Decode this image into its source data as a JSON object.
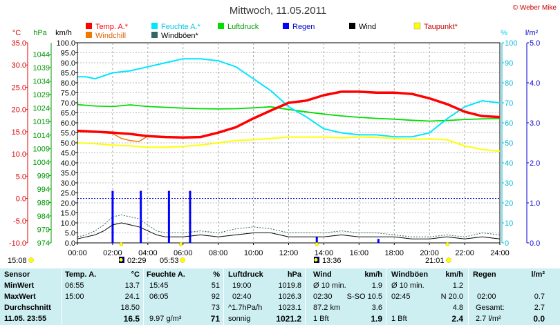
{
  "header": {
    "title": "Mittwoch, 11.05.2011",
    "copyright": "© Weber Mike"
  },
  "colors": {
    "temp": "#ff0000",
    "windchill": "#f07800",
    "feuchte": "#00e6ff",
    "luftdruck": "#00dd00",
    "regen": "#0000ff",
    "wind": "#000000",
    "taupunkt": "#ffff00",
    "windboeen": "#336666",
    "panel_bg": "#cdeff2"
  },
  "chart_data": {
    "type": "line",
    "title": "Mittwoch, 11.05.2011",
    "x_unit": "hours",
    "xlim": [
      0,
      24
    ],
    "x_ticks": [
      "00:00",
      "02:00",
      "04:00",
      "06:00",
      "08:00",
      "10:00",
      "12:00",
      "14:00",
      "16:00",
      "18:00",
      "20:00",
      "22:00",
      "24:00"
    ],
    "axes": {
      "temp_c": {
        "label": "°C",
        "range": [
          -10,
          35
        ],
        "ticks": [
          "35.0",
          "30.0",
          "25.0",
          "20.0",
          "15.0",
          "10.0",
          "5.0",
          "0.0",
          "-5.0",
          "-10.0"
        ]
      },
      "pressure_hpa": {
        "label": "hPa",
        "range": [
          974,
          1048.25
        ],
        "ticks": [
          "1044",
          "1039",
          "1034",
          "1029",
          "1024",
          "1019",
          "1014",
          "1009",
          "1004",
          "999",
          "994",
          "989",
          "984",
          "979",
          "974"
        ]
      },
      "wind_kmh": {
        "label": "km/h",
        "range": [
          0,
          100
        ],
        "ticks": [
          "100.0",
          "95.0",
          "90.0",
          "85.0",
          "80.0",
          "75.0",
          "70.0",
          "65.0",
          "60.0",
          "55.0",
          "50.0",
          "45.0",
          "40.0",
          "35.0",
          "30.0",
          "25.0",
          "20.0",
          "15.0",
          "10.0",
          "5.0",
          "0.0"
        ]
      },
      "humidity_pct": {
        "label": "%",
        "range": [
          0,
          100
        ],
        "ticks": [
          "100",
          "90",
          "80",
          "70",
          "60",
          "50",
          "40",
          "30",
          "20",
          "10",
          "0"
        ]
      },
      "rain_lm2": {
        "label": "l/m²",
        "range": [
          0,
          5
        ],
        "ticks": [
          "5.0",
          "4.0",
          "3.0",
          "2.0",
          "1.0",
          "0.0"
        ]
      }
    },
    "legend": [
      {
        "name": "Temp. A.*",
        "color": "#ff0000"
      },
      {
        "name": "Feuchte A.*",
        "color": "#00e6ff"
      },
      {
        "name": "Luftdruck",
        "color": "#00dd00"
      },
      {
        "name": "Regen",
        "color": "#0000ff"
      },
      {
        "name": "Wind",
        "color": "#000000"
      },
      {
        "name": "Taupunkt*",
        "color": "#ffff00"
      },
      {
        "name": "Windchill",
        "color": "#f07800"
      },
      {
        "name": "Windböen*",
        "color": "#336666"
      }
    ],
    "reference_line_c": 0,
    "series": [
      {
        "name": "Temp. A.*",
        "axis": "temp_c",
        "x": [
          0,
          1,
          2,
          3,
          4,
          5,
          6,
          7,
          8,
          9,
          10,
          11,
          12,
          13,
          14,
          15,
          16,
          17,
          18,
          19,
          20,
          21,
          22,
          23,
          24
        ],
        "values": [
          15.2,
          15.0,
          14.8,
          14.5,
          14.0,
          13.8,
          13.7,
          13.8,
          14.8,
          16.0,
          18.0,
          19.8,
          21.5,
          22.0,
          23.2,
          24.0,
          24.0,
          23.8,
          23.8,
          23.5,
          22.5,
          21.2,
          19.5,
          18.5,
          18.3
        ]
      },
      {
        "name": "Windchill",
        "axis": "temp_c",
        "x": [
          0,
          1,
          2,
          2.5,
          3,
          3.5,
          4,
          5,
          6,
          7,
          8,
          9,
          10,
          11,
          12,
          13,
          14,
          15,
          16,
          17,
          18,
          19,
          20,
          21,
          22,
          23,
          24
        ],
        "values": [
          15.0,
          14.9,
          14.6,
          13.5,
          13.0,
          12.8,
          14.0,
          13.8,
          13.6,
          13.7,
          14.7,
          16.0,
          18.2,
          19.8,
          21.4,
          22.0,
          23.2,
          24.0,
          24.0,
          23.8,
          23.7,
          23.5,
          22.4,
          21.2,
          19.5,
          18.5,
          18.3
        ]
      },
      {
        "name": "Feuchte A.*",
        "axis": "humidity_pct",
        "x": [
          0,
          0.5,
          1,
          2,
          3,
          4,
          5,
          6,
          7,
          8,
          9,
          10,
          11,
          12,
          13,
          14,
          15,
          16,
          17,
          18,
          19,
          20,
          21,
          22,
          23,
          24
        ],
        "values": [
          83,
          83,
          82,
          85,
          86,
          88,
          90,
          92,
          92,
          91,
          88,
          82,
          76,
          68,
          63,
          57,
          55,
          54,
          54,
          53,
          53,
          55,
          62,
          68,
          71,
          70
        ]
      },
      {
        "name": "Luftdruck",
        "axis": "pressure_hpa",
        "x": [
          0,
          1,
          2,
          3,
          4,
          5,
          6,
          7,
          8,
          9,
          10,
          11,
          12,
          13,
          14,
          15,
          16,
          17,
          18,
          19,
          20,
          21,
          22,
          23,
          24
        ],
        "values": [
          1025.3,
          1024.8,
          1024.6,
          1025.2,
          1024.6,
          1024.3,
          1024.0,
          1023.8,
          1023.7,
          1023.8,
          1024.1,
          1024.5,
          1023.5,
          1022.6,
          1021.8,
          1021.1,
          1020.6,
          1020.2,
          1019.9,
          1019.5,
          1019.2,
          1019.4,
          1019.8,
          1020.0,
          1020.1
        ]
      },
      {
        "name": "Taupunkt*",
        "axis": "temp_c",
        "x": [
          0,
          1,
          2,
          3,
          4,
          5,
          6,
          7,
          8,
          9,
          10,
          11,
          12,
          13,
          14,
          15,
          16,
          17,
          18,
          19,
          20,
          21,
          22,
          23,
          24
        ],
        "values": [
          12.5,
          12.3,
          12.0,
          11.8,
          11.5,
          11.5,
          11.7,
          12.0,
          12.5,
          13.0,
          13.2,
          13.5,
          13.8,
          13.8,
          13.8,
          13.6,
          13.8,
          13.7,
          13.5,
          13.3,
          13.4,
          13.2,
          11.8,
          11.0,
          10.6
        ]
      },
      {
        "name": "Wind",
        "axis": "wind_kmh",
        "x": [
          0,
          0.5,
          1,
          1.5,
          2,
          2.5,
          3,
          3.5,
          4,
          4.5,
          5,
          6,
          7,
          8,
          9,
          10,
          11,
          12,
          13,
          14,
          15,
          16,
          17,
          18,
          19,
          20,
          21,
          22,
          23,
          24
        ],
        "values": [
          2,
          3,
          4,
          6,
          9,
          10,
          9,
          8,
          6,
          4,
          3,
          3,
          4,
          3,
          4,
          5,
          5,
          3,
          3,
          3,
          4,
          3,
          3,
          3,
          2,
          2,
          3,
          2,
          3,
          2
        ]
      },
      {
        "name": "Windböen*",
        "axis": "wind_kmh",
        "x": [
          0,
          0.5,
          1,
          1.5,
          2,
          2.5,
          3,
          3.5,
          4,
          4.5,
          5,
          6,
          7,
          8,
          9,
          10,
          11,
          12,
          13,
          14,
          15,
          16,
          17,
          18,
          19,
          20,
          21,
          22,
          23,
          24
        ],
        "values": [
          3,
          4,
          6,
          9,
          13,
          14,
          13,
          12,
          9,
          6,
          5,
          5,
          6,
          5,
          7,
          8,
          7,
          5,
          5,
          5,
          6,
          5,
          5,
          4,
          3,
          3,
          4,
          3,
          5,
          4
        ]
      }
    ],
    "rain_bars": [
      {
        "x": 2.0,
        "value": 1.3
      },
      {
        "x": 3.6,
        "value": 1.3
      },
      {
        "x": 5.2,
        "value": 1.3
      },
      {
        "x": 6.4,
        "value": 1.3
      },
      {
        "x": 13.6,
        "value": 0.15
      },
      {
        "x": 17.1,
        "value": 0.1
      }
    ],
    "time_markers": [
      {
        "label": "15:08",
        "kind": "sunrise"
      },
      {
        "label": "02:29",
        "kind": "moon"
      },
      {
        "label": "05:53",
        "kind": "sun"
      },
      {
        "label": "13:36",
        "kind": "moon"
      },
      {
        "label": "21:01",
        "kind": "sun"
      }
    ]
  },
  "table": {
    "sensor": {
      "title": "Sensor",
      "labels": [
        "MinWert",
        "MaxWert",
        "Durchschnitt"
      ],
      "date": "11.05. 23:55"
    },
    "temp": {
      "title": "Temp. A.",
      "unit": "°C",
      "min_time": "06:55",
      "min_val": "13.7",
      "max_time": "15:00",
      "max_val": "24.1",
      "avg": "18.50",
      "current": "16.5"
    },
    "feuchte": {
      "title": "Feuchte A.",
      "unit": "%",
      "min_time": "15:45",
      "min_val": "51",
      "max_time": "06:05",
      "max_val": "92",
      "avg": "73",
      "extra": "9.97 g/m³",
      "current": "71"
    },
    "luftdruck": {
      "title": "Luftdruck",
      "unit": "hPa",
      "min_time": "19:00",
      "min_val": "1019.8",
      "max_time": "02:40",
      "max_val": "1026.3",
      "trend": "^1.7hPa/h",
      "avg": "1023.1",
      "status": "sonnig",
      "current": "1021.2"
    },
    "wind": {
      "title": "Wind",
      "unit": "km/h",
      "r1_label": "Ø 10 min.",
      "r1_val": "1.9",
      "r2_time": "02:30",
      "r2_dir": "S-SO 10.5",
      "r3_label": "87.2 km",
      "r3_val": "3.6",
      "bft": "1 Bft",
      "current": "1.9"
    },
    "boeen": {
      "title": "Windböen",
      "unit": "km/h",
      "r1_label": "Ø 10 min.",
      "r1_val": "1.2",
      "r2_time": "02:45",
      "r2_dir": "N 20.0",
      "r3_val": "4.8",
      "bft": "1 Bft",
      "current": "2.4"
    },
    "regen": {
      "title": "Regen",
      "unit": "l/m²",
      "r2_time": "02:00",
      "r2_val": "0.7",
      "r3_label": "Gesamt:",
      "r3_val": "2.7",
      "r4_label": "2.7 l/m²",
      "current": "0.0"
    }
  }
}
